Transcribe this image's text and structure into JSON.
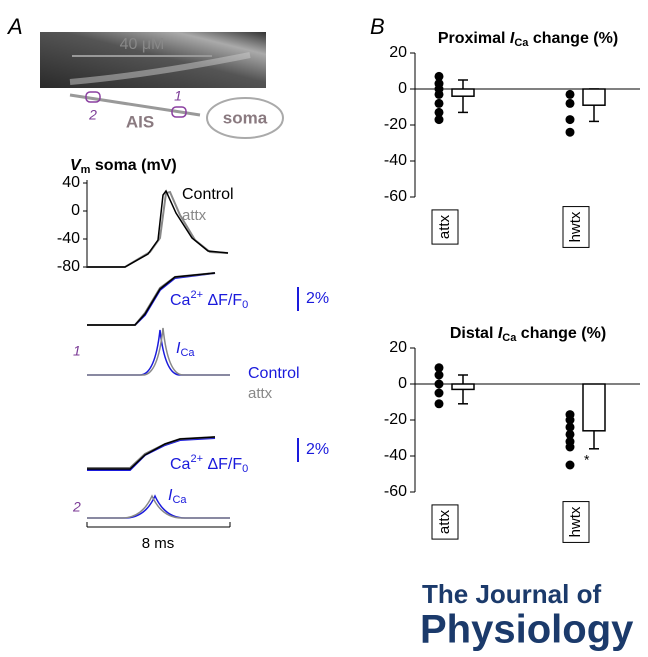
{
  "panel_a": {
    "label": "A",
    "scale": "40 μM",
    "ais": "AIS",
    "soma": "soma",
    "site_1": "1",
    "site_2": "2",
    "vm_title": {
      "symbol": "V",
      "subscript": "m",
      "suffix": " soma (mV)"
    },
    "vm_ylim": [
      -80,
      40
    ],
    "vm_yticks": [
      40,
      0,
      -40,
      -80
    ],
    "vm_legend": [
      "Control",
      "attx"
    ],
    "ca_label": {
      "base": "Ca",
      "superscript": "2+",
      "middle": " ΔF/F",
      "subscript": "0"
    },
    "scale_bar": "2%",
    "ica": {
      "symbol": "I",
      "subscript": "Ca"
    },
    "legend": [
      "Control",
      "attx"
    ],
    "time_bar": "8 ms"
  },
  "panel_b": {
    "label": "B"
  },
  "chart_data": [
    {
      "type": "bar",
      "title": {
        "prefix": "Proximal ",
        "symbol": "I",
        "subscript": "Ca",
        "suffix": " change (%)"
      },
      "categories": [
        "attx",
        "hwtx"
      ],
      "values": [
        -4,
        -9
      ],
      "errors": [
        9,
        9
      ],
      "points": [
        [
          7,
          3,
          0,
          -3,
          -8,
          -13,
          -17
        ],
        [
          -3,
          -8,
          -17,
          -24
        ]
      ],
      "ylim": [
        -60,
        20
      ],
      "yticks": [
        20,
        0,
        -20,
        -40,
        -60
      ]
    },
    {
      "type": "bar",
      "title": {
        "prefix": "Distal ",
        "symbol": "I",
        "subscript": "Ca",
        "suffix": " change (%)"
      },
      "categories": [
        "attx",
        "hwtx"
      ],
      "values": [
        -3,
        -26
      ],
      "errors": [
        8,
        10
      ],
      "points": [
        [
          9,
          5,
          0,
          -5,
          -11
        ],
        [
          -17,
          -20,
          -24,
          -28,
          -32,
          -35,
          -45
        ]
      ],
      "ylim": [
        -60,
        20
      ],
      "yticks": [
        20,
        0,
        -20,
        -40,
        -60
      ],
      "annotation": {
        "text": "*",
        "category": "hwtx"
      }
    }
  ],
  "journal": {
    "line1": "The Journal of",
    "line2": "Physiology"
  }
}
